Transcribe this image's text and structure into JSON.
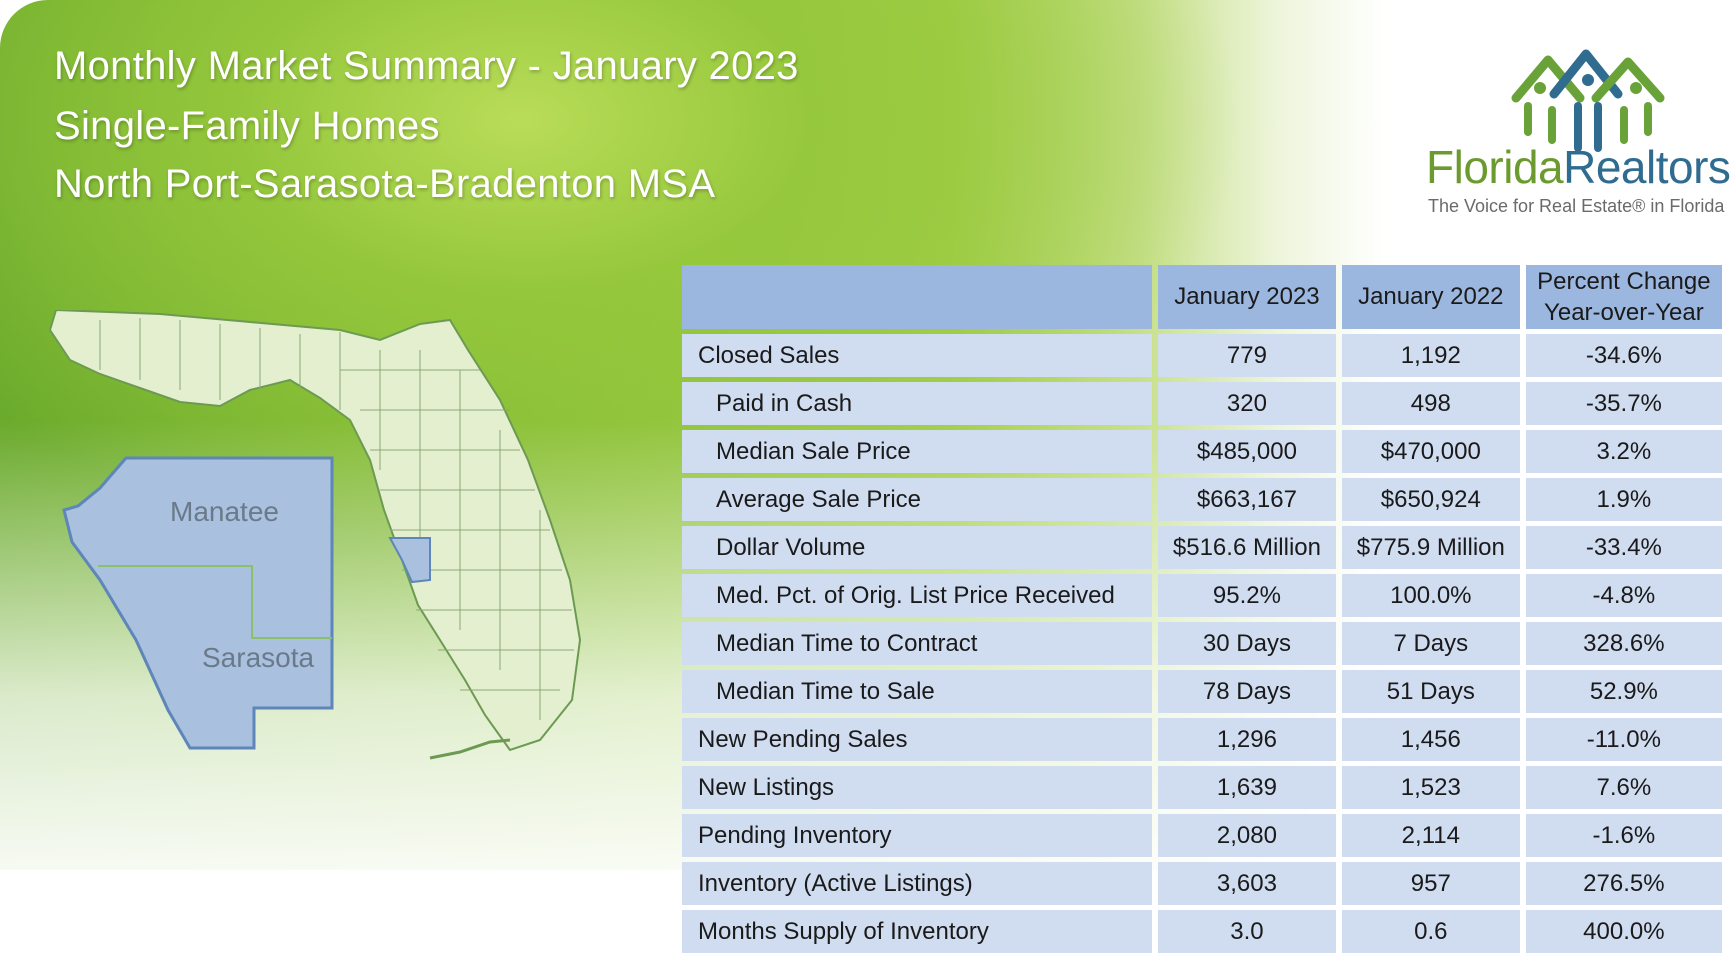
{
  "header": {
    "title_line1": "Monthly Market Summary - January 2023",
    "title_line2": "Single-Family Homes",
    "title_line3": "North Port-Sarasota-Bradenton MSA"
  },
  "logo": {
    "brand_part1": "Florida",
    "brand_part2": "Realtors",
    "registered": "®",
    "tagline": "The Voice for Real Estate® in Florida"
  },
  "map": {
    "county_labels": [
      "Manatee",
      "Sarasota"
    ],
    "colors": {
      "state_fill": "#e4efcf",
      "state_stroke": "#6c9a52",
      "msa_fill": "#a9c0df",
      "msa_stroke": "#5e86b8"
    }
  },
  "table": {
    "columns": [
      "January 2023",
      "January 2022"
    ],
    "pct_change_line1": "Percent Change",
    "pct_change_line2": "Year-over-Year",
    "rows": [
      {
        "label": "Closed Sales",
        "indent": false,
        "jan2023": "779",
        "jan2022": "1,192",
        "change": "-34.6%"
      },
      {
        "label": "Paid in Cash",
        "indent": true,
        "jan2023": "320",
        "jan2022": "498",
        "change": "-35.7%"
      },
      {
        "label": "Median Sale Price",
        "indent": true,
        "jan2023": "$485,000",
        "jan2022": "$470,000",
        "change": "3.2%"
      },
      {
        "label": "Average Sale Price",
        "indent": true,
        "jan2023": "$663,167",
        "jan2022": "$650,924",
        "change": "1.9%"
      },
      {
        "label": "Dollar Volume",
        "indent": true,
        "jan2023": "$516.6 Million",
        "jan2022": "$775.9 Million",
        "change": "-33.4%"
      },
      {
        "label": "Med. Pct. of Orig. List Price Received",
        "indent": true,
        "jan2023": "95.2%",
        "jan2022": "100.0%",
        "change": "-4.8%"
      },
      {
        "label": "Median Time to Contract",
        "indent": true,
        "jan2023": "30 Days",
        "jan2022": "7 Days",
        "change": "328.6%"
      },
      {
        "label": "Median Time to Sale",
        "indent": true,
        "jan2023": "78 Days",
        "jan2022": "51 Days",
        "change": "52.9%"
      },
      {
        "label": "New Pending Sales",
        "indent": false,
        "jan2023": "1,296",
        "jan2022": "1,456",
        "change": "-11.0%"
      },
      {
        "label": "New Listings",
        "indent": false,
        "jan2023": "1,639",
        "jan2022": "1,523",
        "change": "7.6%"
      },
      {
        "label": "Pending Inventory",
        "indent": false,
        "jan2023": "2,080",
        "jan2022": "2,114",
        "change": "-1.6%"
      },
      {
        "label": "Inventory (Active Listings)",
        "indent": false,
        "jan2023": "3,603",
        "jan2022": "957",
        "change": "276.5%"
      },
      {
        "label": "Months Supply of Inventory",
        "indent": false,
        "jan2023": "3.0",
        "jan2022": "0.6",
        "change": "400.0%"
      }
    ]
  }
}
